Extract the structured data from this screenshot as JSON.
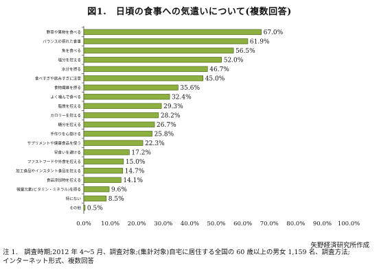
{
  "title": "図1.　日頃の食事への気遣いについて(複数回答)",
  "source": "矢野経済研究所作成",
  "note_line1": "注 1.　調査時期;2012 年 4～5 月、調査対象;(集計対象)自宅に居住する全国の 60 歳以上の男女 1,159 名、調査方法;",
  "note_line2": "インターネット形式、複数回答",
  "chart_data": {
    "type": "bar",
    "orientation": "horizontal",
    "categories": [
      "野菜や果物を食べる",
      "バランスの摂れた食事",
      "魚を食べる",
      "塩分を控える",
      "水分を摂る",
      "食べすぎや飲みすぎに注意",
      "食物繊維を摂る",
      "よく噛んで食べる",
      "脂質を控える",
      "カロリーを控える",
      "糖分を控える",
      "手作りを心掛ける",
      "サプリメントや健康食品を使う",
      "早食いを避ける",
      "ファストフードや外食を控える",
      "加工食品やインスタント食品を控える",
      "食品添加物を控える",
      "微量元素(ビタミン・ミネラル)を摂る",
      "特にない",
      "その他"
    ],
    "values": [
      67.0,
      61.9,
      56.5,
      52.0,
      46.7,
      45.0,
      35.6,
      32.4,
      29.3,
      28.2,
      26.7,
      25.8,
      22.3,
      17.2,
      15.0,
      14.7,
      14.1,
      9.6,
      8.5,
      0.5
    ],
    "value_labels": [
      "67.0%",
      "61.9%",
      "56.5%",
      "52.0%",
      "46.7%",
      "45.0%",
      "35.6%",
      "32.4%",
      "29.3%",
      "28.2%",
      "26.7%",
      "25.8%",
      "22.3%",
      "17.2%",
      "15.0%",
      "14.7%",
      "14.1%",
      "9.6%",
      "8.5%",
      "0.5%"
    ],
    "xlim": [
      0,
      100
    ],
    "x_ticks": [
      "0.0%",
      "10.0%",
      "20.0%",
      "30.0%",
      "40.0%",
      "50.0%",
      "60.0%",
      "70.0%",
      "80.0%",
      "90.0%",
      "100.0%"
    ],
    "grid": false,
    "bar_color": "#8db040",
    "bar_edge_color": "#3b5a12"
  }
}
